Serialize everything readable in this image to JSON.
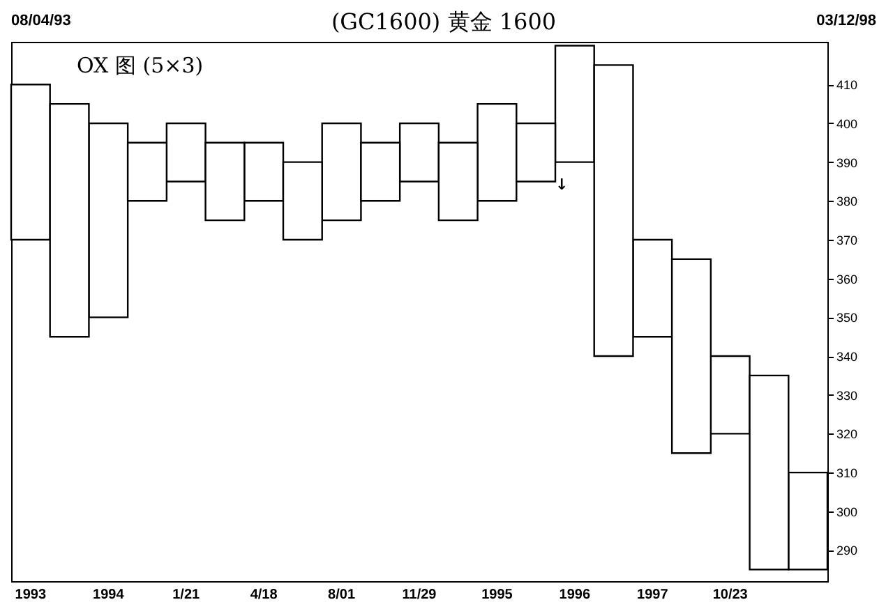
{
  "chart_data": {
    "type": "bar",
    "title": "(GC1600) 黄金 1600",
    "annotations": [
      "08/04/93",
      "03/12/98",
      "OX 图 (5×3)",
      "↓"
    ],
    "categories": [
      "1993",
      null,
      "1994",
      null,
      "1/21",
      null,
      "4/18",
      null,
      "8/01",
      null,
      "11/29",
      null,
      "1995",
      null,
      "1996",
      null,
      "1997",
      null,
      "10/23",
      null,
      null
    ],
    "ylim": [
      282,
      421
    ],
    "yticks": [
      290,
      300,
      310,
      320,
      330,
      340,
      350,
      360,
      370,
      380,
      390,
      400,
      410
    ],
    "series": [
      {
        "color": "#000000",
        "base": [
          370,
          null,
          350,
          null,
          385,
          null,
          380,
          null,
          375,
          null,
          385,
          null,
          380,
          null,
          390,
          null,
          345,
          null,
          320,
          null,
          285
        ],
        "values": [
          40,
          null,
          50,
          null,
          15,
          null,
          15,
          null,
          25,
          null,
          15,
          null,
          25,
          null,
          30,
          null,
          25,
          null,
          20,
          null,
          25
        ]
      },
      {
        "color": "#000000",
        "base": [
          null,
          345,
          null,
          380,
          null,
          375,
          null,
          370,
          null,
          380,
          null,
          375,
          null,
          385,
          null,
          340,
          null,
          315,
          null,
          285,
          null
        ],
        "values": [
          null,
          60,
          null,
          15,
          null,
          20,
          null,
          20,
          null,
          15,
          null,
          20,
          null,
          15,
          null,
          75,
          null,
          50,
          null,
          50,
          null
        ]
      }
    ]
  }
}
